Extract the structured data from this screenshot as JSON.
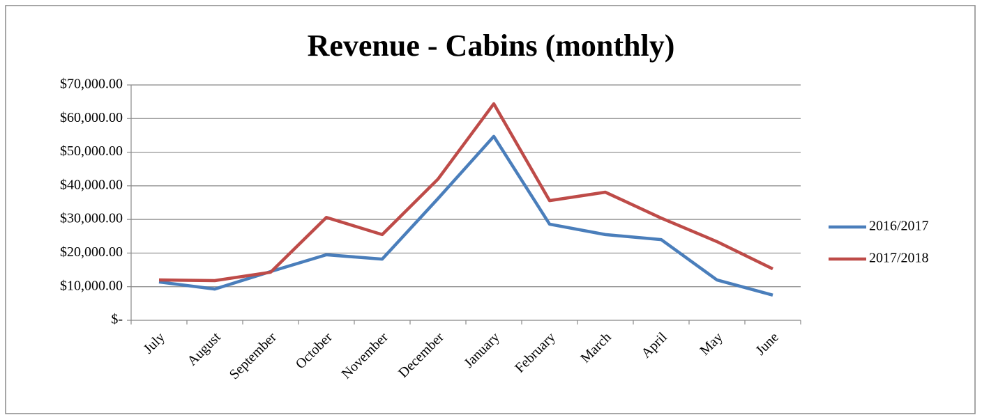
{
  "chart_data": {
    "type": "line",
    "title": "Revenue - Cabins (monthly)",
    "categories": [
      "July",
      "August",
      "September",
      "October",
      "November",
      "December",
      "January",
      "February",
      "March",
      "April",
      "May",
      "June"
    ],
    "series": [
      {
        "name": "2016/2017",
        "color": "#4a7ebb",
        "values": [
          11400,
          9300,
          14500,
          19500,
          18200,
          36200,
          54700,
          28600,
          25500,
          24000,
          12000,
          7500
        ]
      },
      {
        "name": "2017/2018",
        "color": "#be4b48",
        "values": [
          12000,
          11800,
          14300,
          30600,
          25500,
          42000,
          64400,
          35600,
          38100,
          30400,
          23400,
          15300
        ]
      }
    ],
    "ylim": [
      0,
      70000
    ],
    "yticks": [
      {
        "value": 0,
        "label": "$-"
      },
      {
        "value": 10000,
        "label": "$10,000.00"
      },
      {
        "value": 20000,
        "label": "$20,000.00"
      },
      {
        "value": 30000,
        "label": "$30,000.00"
      },
      {
        "value": 40000,
        "label": "$40,000.00"
      },
      {
        "value": 50000,
        "label": "$50,000.00"
      },
      {
        "value": 60000,
        "label": "$60,000.00"
      },
      {
        "value": 70000,
        "label": "$70,000.00"
      }
    ],
    "grid": true,
    "legend": "right"
  }
}
